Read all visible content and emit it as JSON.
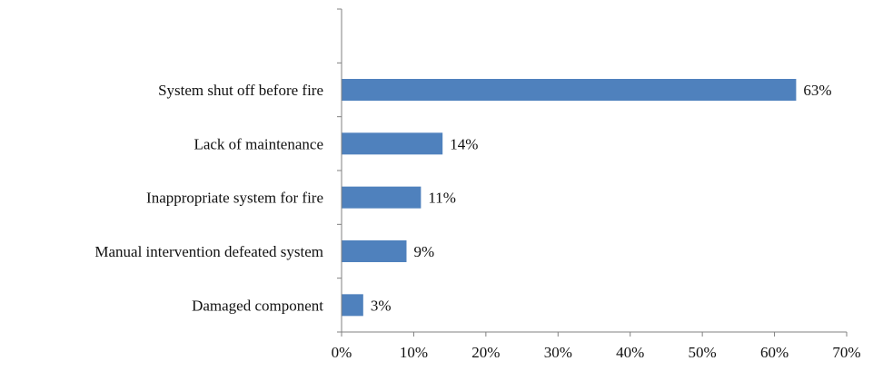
{
  "chart_data": {
    "type": "bar",
    "orientation": "horizontal",
    "categories": [
      "System shut off before fire",
      "Lack of maintenance",
      "Inappropriate system for fire",
      "Manual intervention defeated system",
      "Damaged component"
    ],
    "values": [
      63,
      14,
      11,
      9,
      3
    ],
    "data_labels": [
      "63%",
      "14%",
      "11%",
      "9%",
      "3%"
    ],
    "xlim": [
      0,
      70
    ],
    "x_ticks": [
      0,
      10,
      20,
      30,
      40,
      50,
      60,
      70
    ],
    "x_tick_labels": [
      "0%",
      "10%",
      "20%",
      "30%",
      "40%",
      "50%",
      "60%",
      "70%"
    ],
    "bar_color": "#4f81bd",
    "grid": false,
    "legend": "none",
    "title": "",
    "xlabel": "",
    "ylabel": ""
  }
}
